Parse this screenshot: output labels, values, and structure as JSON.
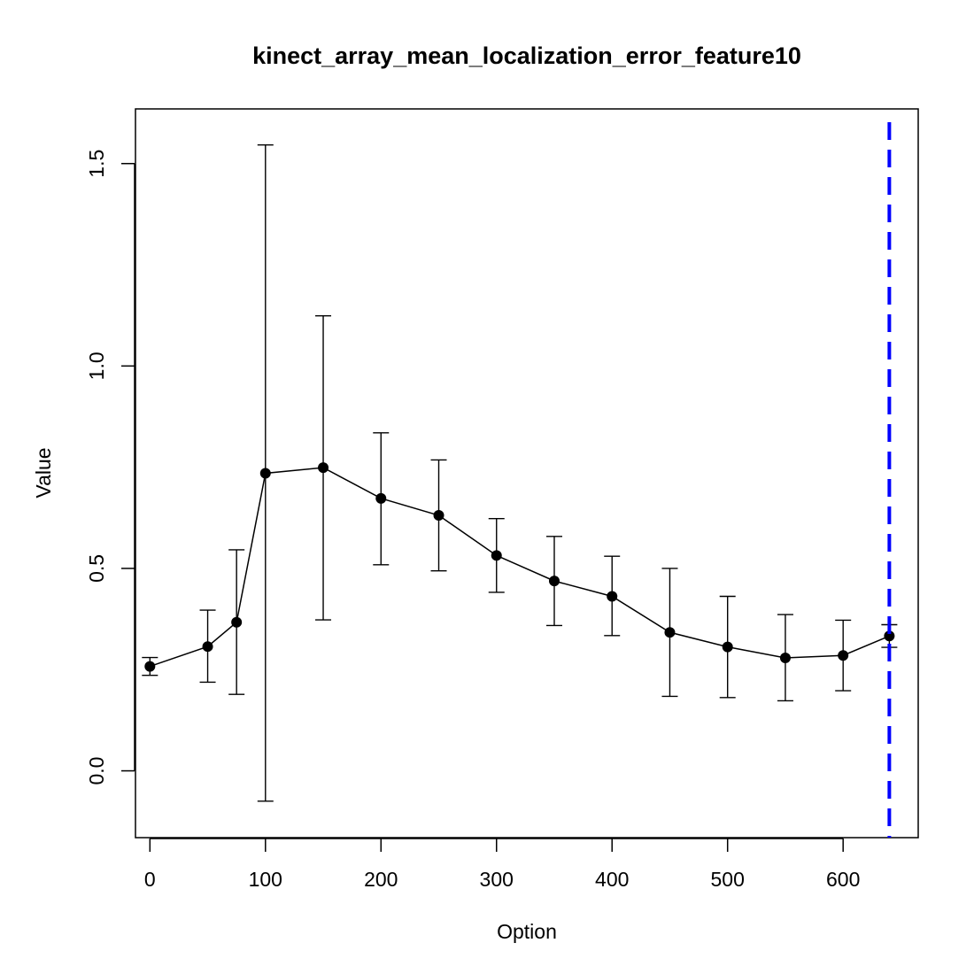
{
  "chart_data": {
    "type": "line",
    "title": "kinect_array_mean_localization_error_feature10",
    "xlabel": "Option",
    "ylabel": "Value",
    "xlim": [
      -12.5,
      665
    ],
    "ylim": [
      -0.165,
      1.635
    ],
    "x_ticks": [
      0,
      100,
      200,
      300,
      400,
      500,
      600
    ],
    "y_ticks": [
      0.0,
      0.5,
      1.0,
      1.5
    ],
    "x_tick_labels": [
      "0",
      "100",
      "200",
      "300",
      "400",
      "500",
      "600"
    ],
    "y_tick_labels": [
      "0.0",
      "0.5",
      "1.0",
      "1.5"
    ],
    "grid": false,
    "legend": "none",
    "series": [
      {
        "color": "#000000",
        "x": [
          0,
          50,
          75,
          100,
          150,
          200,
          250,
          300,
          350,
          400,
          450,
          500,
          550,
          600,
          640
        ],
        "y": [
          0.258,
          0.307,
          0.367,
          0.735,
          0.749,
          0.673,
          0.631,
          0.532,
          0.469,
          0.431,
          0.342,
          0.306,
          0.279,
          0.285,
          0.333
        ],
        "err_low": [
          0.236,
          0.219,
          0.189,
          -0.075,
          0.373,
          0.509,
          0.494,
          0.441,
          0.359,
          0.334,
          0.184,
          0.181,
          0.173,
          0.198,
          0.305
        ],
        "err_high": [
          0.28,
          0.397,
          0.546,
          1.546,
          1.124,
          0.835,
          0.768,
          0.623,
          0.579,
          0.53,
          0.5,
          0.431,
          0.386,
          0.372,
          0.361
        ]
      }
    ],
    "vline": {
      "x": 640,
      "color": "#0000ff",
      "style": "dashed"
    }
  }
}
